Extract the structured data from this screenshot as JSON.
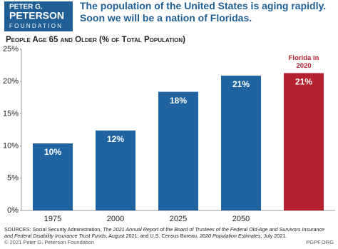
{
  "logo": {
    "lines": [
      "PETER G.",
      "PETERSON",
      "FOUNDATION"
    ]
  },
  "chart_data": {
    "type": "bar",
    "title": "The population of the United States is aging rapidly. Soon we will be a nation of Floridas.",
    "subtitle": "People Age 65 and Older (% of Total Population)",
    "categories": [
      "1975",
      "2000",
      "2025",
      "2050",
      null
    ],
    "values": [
      10.4,
      12.4,
      18.4,
      20.9,
      21.3
    ],
    "value_labels": [
      "10%",
      "12%",
      "18%",
      "21%",
      "21%"
    ],
    "colors": [
      "#1f64a0",
      "#1f64a0",
      "#1f64a0",
      "#1f64a0",
      "#b5202e"
    ],
    "annotations": [
      {
        "text": "Florida in 2020",
        "index": 4
      }
    ],
    "ylim": [
      0,
      25
    ],
    "yticks": [
      {
        "value": 0,
        "label": "0%"
      },
      {
        "value": 5,
        "label": "5%"
      },
      {
        "value": 10,
        "label": "10%"
      },
      {
        "value": 15,
        "label": "15%"
      },
      {
        "value": 20,
        "label": "20%"
      },
      {
        "value": 25,
        "label": "25%"
      }
    ],
    "sources": [
      "SOURCES: Social Security Administration, ",
      "The 2021 Annual Report of the Board of Trustees of the Federal Old-Age and Survivors Insurance and Federal Disability Insurance Trust Funds",
      ", August 2021; and U.S. Census Bureau, ",
      "2020 Population Estimates",
      ", July 2021."
    ],
    "footer_left": "© 2021 Peter G. Peterson Foundation",
    "footer_right": "PGPF.ORG"
  }
}
